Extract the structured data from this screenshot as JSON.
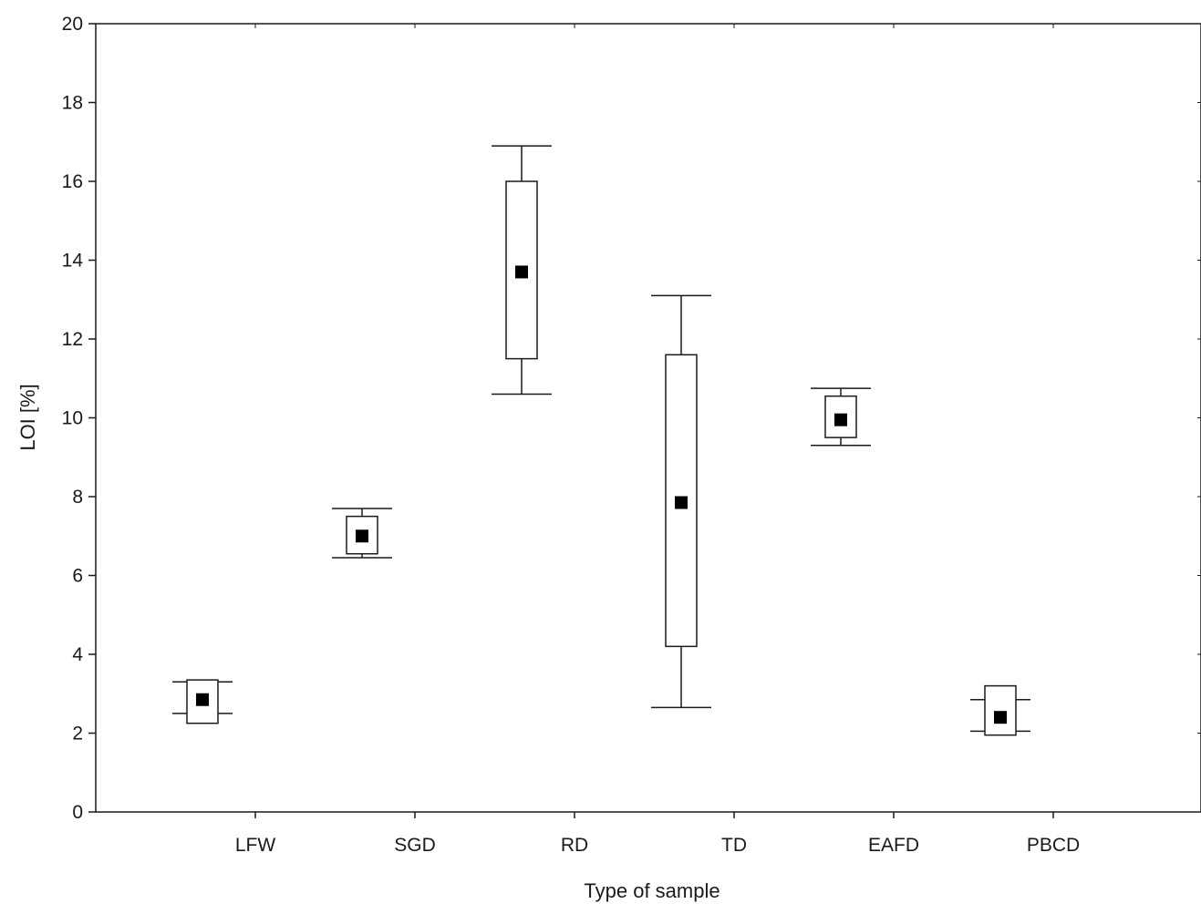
{
  "chart_data": {
    "type": "boxplot",
    "xlabel": "Type of sample",
    "ylabel": "LOI [%]",
    "ylim": [
      0,
      20
    ],
    "yticks": [
      0,
      2,
      4,
      6,
      8,
      10,
      12,
      14,
      16,
      18,
      20
    ],
    "grid": false,
    "categories": [
      "LFW",
      "SGD",
      "RD",
      "TD",
      "EAFD",
      "PBCD"
    ],
    "series": [
      {
        "category": "LFW",
        "mean": 2.85,
        "box_low": 2.25,
        "box_high": 3.35,
        "whisker_low": 2.5,
        "whisker_high": 3.3
      },
      {
        "category": "SGD",
        "mean": 7.0,
        "box_low": 6.55,
        "box_high": 7.5,
        "whisker_low": 6.45,
        "whisker_high": 7.7
      },
      {
        "category": "RD",
        "mean": 13.7,
        "box_low": 11.5,
        "box_high": 16.0,
        "whisker_low": 10.6,
        "whisker_high": 16.9
      },
      {
        "category": "TD",
        "mean": 7.85,
        "box_low": 4.2,
        "box_high": 11.6,
        "whisker_low": 2.65,
        "whisker_high": 13.1
      },
      {
        "category": "EAFD",
        "mean": 9.95,
        "box_low": 9.5,
        "box_high": 10.55,
        "whisker_low": 9.3,
        "whisker_high": 10.75
      },
      {
        "category": "PBCD",
        "mean": 2.4,
        "box_low": 1.95,
        "box_high": 3.2,
        "whisker_low": 2.05,
        "whisker_high": 2.85
      }
    ],
    "colors": {
      "marker": "#000000",
      "box": "#ffffff",
      "stroke": "#1a1a1a"
    }
  }
}
